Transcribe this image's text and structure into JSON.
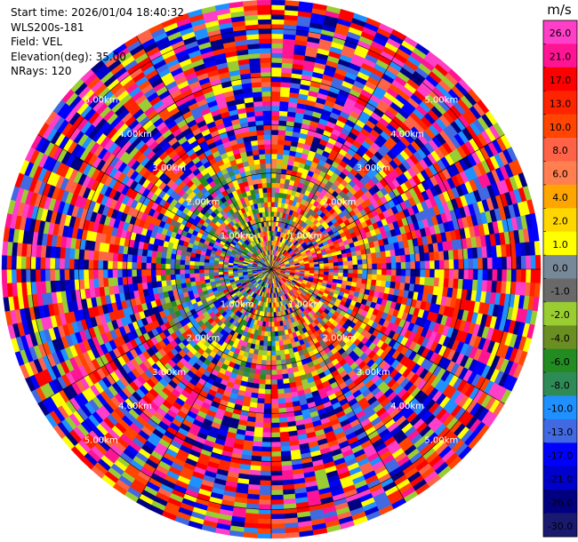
{
  "info": {
    "start_time": "Start time: 2026/01/04 18:40:32",
    "instrument": "WLS200s-181",
    "field": "Field: VEL",
    "elevation": "Elevation(deg): 35.00",
    "nrays": "NRays: 120"
  },
  "chart_data": {
    "type": "heatmap",
    "projection": "polar (PPI)",
    "field": "VEL",
    "elevation_deg": 35.0,
    "n_rays": 120,
    "range_rings_km": [
      1,
      2,
      3,
      4,
      5
    ],
    "range_ring_labels": [
      "1.00km",
      "2.00km",
      "3.00km",
      "4.00km",
      "5.00km"
    ],
    "max_range_km": 5.6,
    "colorbar": {
      "unit": "m/s",
      "tick_labels": [
        "26.0",
        "21.0",
        "17.0",
        "13.0",
        "10.0",
        "8.0",
        "6.0",
        "4.0",
        "2.0",
        "1.0",
        "0.0",
        "-1.0",
        "-2.0",
        "-4.0",
        "-6.0",
        "-8.0",
        "-10.0",
        "-13.0",
        "-17.0",
        "-21.0",
        "-26.0",
        "-30.0"
      ],
      "colors": [
        "#ff3fc8",
        "#ff1493",
        "#ff0000",
        "#ff2400",
        "#ff4500",
        "#ff6347",
        "#ff7f50",
        "#ffa500",
        "#ffd700",
        "#ffff00",
        "#778899",
        "#696969",
        "#9acd32",
        "#6b8e23",
        "#228b22",
        "#2e8b57",
        "#1e90ff",
        "#4169e1",
        "#0000ff",
        "#0000cd",
        "#000080",
        "#191970"
      ]
    }
  }
}
